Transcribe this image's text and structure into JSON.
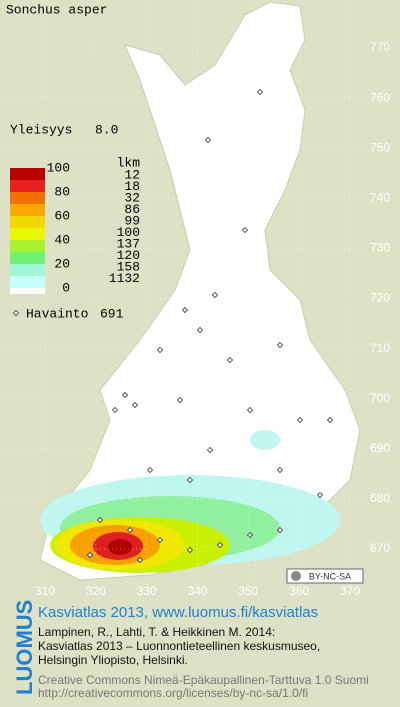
{
  "map": {
    "title": "Sonchus asper",
    "frequency_label": "Yleisyys",
    "frequency_value": "8.0",
    "legend": {
      "header": "lkm",
      "levels": [
        100,
        80,
        60,
        40,
        20,
        0
      ],
      "counts": [
        12,
        18,
        32,
        86,
        99,
        100,
        137,
        120,
        158,
        1132
      ]
    },
    "observation_label": "Havainto",
    "observation_count": 691,
    "y_grid": [
      770,
      760,
      750,
      740,
      730,
      720,
      710,
      700,
      690,
      680,
      670
    ],
    "x_grid": [
      310,
      320,
      330,
      340,
      350,
      360,
      370
    ],
    "license_badge": "BY-NC-SA",
    "logo": "LUOMUS",
    "atlas_link": "Kasviatlas 2013, www.luomus.fi/kasviatlas",
    "citation": [
      "Lampinen, R., Lahti, T. & Heikkinen M. 2014:",
      "Kasviatlas 2013 – Luonnontieteellinen keskusmuseo,",
      "Helsingin Yliopisto, Helsinki."
    ],
    "license": [
      "Creative Commons Nimeä-Epäkaupallinen-Tarttuva 1.0 Suomi",
      "http://creativecommons.org/licenses/by-nc-sa/1.0/fi"
    ]
  }
}
